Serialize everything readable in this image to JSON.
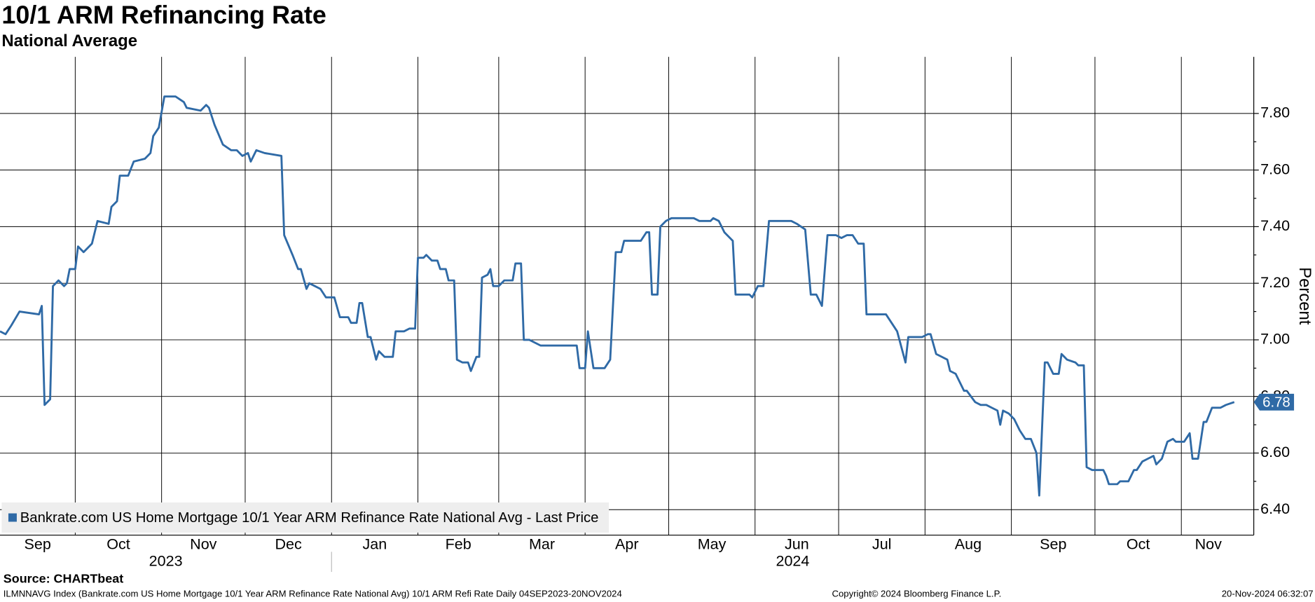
{
  "chart_data": {
    "type": "line",
    "title": "10/1 ARM Refinancing Rate",
    "subtitle": "National Average",
    "y_axis_label": "Percent",
    "source": "Source: CHARTbeat",
    "footer_left": "ILMNNAVG Index (Bankrate.com US Home Mortgage 10/1 Year ARM Refinance Rate National Avg) 10/1 ARM Refi Rate  Daily 04SEP2023-20NOV2024",
    "footer_center": "Copyright© 2024 Bloomberg Finance L.P.",
    "footer_right": "20-Nov-2024 06:32:07",
    "years": [
      "2023",
      "2024"
    ],
    "xlim": [
      "2023-09-04",
      "2024-11-27"
    ],
    "xticks": [
      {
        "value": "2023-09-01",
        "label": "Sep"
      },
      {
        "value": "2023-10-01",
        "label": "Oct"
      },
      {
        "value": "2023-11-01",
        "label": "Nov"
      },
      {
        "value": "2023-12-01",
        "label": "Dec"
      },
      {
        "value": "2024-01-01",
        "label": "Jan"
      },
      {
        "value": "2024-02-01",
        "label": "Feb"
      },
      {
        "value": "2024-03-01",
        "label": "Mar"
      },
      {
        "value": "2024-04-01",
        "label": "Apr"
      },
      {
        "value": "2024-05-01",
        "label": "May"
      },
      {
        "value": "2024-06-01",
        "label": "Jun"
      },
      {
        "value": "2024-07-01",
        "label": "Jul"
      },
      {
        "value": "2024-08-01",
        "label": "Aug"
      },
      {
        "value": "2024-09-01",
        "label": "Sep"
      },
      {
        "value": "2024-10-01",
        "label": "Oct"
      },
      {
        "value": "2024-11-01",
        "label": "Nov"
      }
    ],
    "ylim": [
      6.31,
      8.0
    ],
    "yticks": [
      {
        "value": 6.4,
        "label": "6.40"
      },
      {
        "value": 6.6,
        "label": "6.60"
      },
      {
        "value": 6.8,
        "label": "6.80"
      },
      {
        "value": 7.0,
        "label": "7.00"
      },
      {
        "value": 7.2,
        "label": "7.20"
      },
      {
        "value": 7.4,
        "label": "7.40"
      },
      {
        "value": 7.6,
        "label": "7.60"
      },
      {
        "value": 7.8,
        "label": "7.80"
      }
    ],
    "grid": true,
    "legend": "bottom-left",
    "x": [
      "2023-09-04",
      "2023-09-06",
      "2023-09-08",
      "2023-09-11",
      "2023-09-18",
      "2023-09-19",
      "2023-09-20",
      "2023-09-22",
      "2023-09-23",
      "2023-09-25",
      "2023-09-27",
      "2023-09-28",
      "2023-09-29",
      "2023-10-01",
      "2023-10-02",
      "2023-10-04",
      "2023-10-07",
      "2023-10-09",
      "2023-10-13",
      "2023-10-14",
      "2023-10-16",
      "2023-10-17",
      "2023-10-20",
      "2023-10-22",
      "2023-10-26",
      "2023-10-28",
      "2023-10-29",
      "2023-10-31",
      "2023-11-02",
      "2023-11-06",
      "2023-11-09",
      "2023-11-10",
      "2023-11-15",
      "2023-11-17",
      "2023-11-18",
      "2023-11-20",
      "2023-11-23",
      "2023-11-26",
      "2023-11-28",
      "2023-11-30",
      "2023-12-02",
      "2023-12-03",
      "2023-12-05",
      "2023-12-08",
      "2023-12-14",
      "2023-12-15",
      "2023-12-18",
      "2023-12-20",
      "2023-12-21",
      "2023-12-23",
      "2023-12-24",
      "2023-12-28",
      "2023-12-30",
      "2024-01-02",
      "2024-01-04",
      "2024-01-07",
      "2024-01-08",
      "2024-01-10",
      "2024-01-11",
      "2024-01-12",
      "2024-01-14",
      "2024-01-15",
      "2024-01-17",
      "2024-01-18",
      "2024-01-20",
      "2024-01-23",
      "2024-01-24",
      "2024-01-27",
      "2024-01-29",
      "2024-01-31",
      "2024-02-01",
      "2024-02-03",
      "2024-02-04",
      "2024-02-06",
      "2024-02-08",
      "2024-02-09",
      "2024-02-11",
      "2024-02-12",
      "2024-02-14",
      "2024-02-15",
      "2024-02-17",
      "2024-02-19",
      "2024-02-20",
      "2024-02-22",
      "2024-02-23",
      "2024-02-24",
      "2024-02-26",
      "2024-02-27",
      "2024-02-28",
      "2024-03-01",
      "2024-03-03",
      "2024-03-06",
      "2024-03-07",
      "2024-03-09",
      "2024-03-10",
      "2024-03-12",
      "2024-03-14",
      "2024-03-16",
      "2024-03-29",
      "2024-03-30",
      "2024-04-01",
      "2024-04-02",
      "2024-04-04",
      "2024-04-08",
      "2024-04-10",
      "2024-04-12",
      "2024-04-14",
      "2024-04-15",
      "2024-04-21",
      "2024-04-23",
      "2024-04-24",
      "2024-04-25",
      "2024-04-27",
      "2024-04-28",
      "2024-04-30",
      "2024-05-02",
      "2024-05-10",
      "2024-05-12",
      "2024-05-16",
      "2024-05-17",
      "2024-05-19",
      "2024-05-21",
      "2024-05-24",
      "2024-05-25",
      "2024-05-30",
      "2024-05-31",
      "2024-06-02",
      "2024-06-04",
      "2024-06-06",
      "2024-06-14",
      "2024-06-16",
      "2024-06-19",
      "2024-06-21",
      "2024-06-23",
      "2024-06-25",
      "2024-06-27",
      "2024-06-30",
      "2024-07-02",
      "2024-07-04",
      "2024-07-06",
      "2024-07-08",
      "2024-07-10",
      "2024-07-11",
      "2024-07-18",
      "2024-07-20",
      "2024-07-22",
      "2024-07-25",
      "2024-07-26",
      "2024-07-31",
      "2024-08-02",
      "2024-08-03",
      "2024-08-05",
      "2024-08-07",
      "2024-08-09",
      "2024-08-10",
      "2024-08-12",
      "2024-08-15",
      "2024-08-16",
      "2024-08-19",
      "2024-08-21",
      "2024-08-23",
      "2024-08-25",
      "2024-08-27",
      "2024-08-28",
      "2024-08-29",
      "2024-08-31",
      "2024-09-02",
      "2024-09-04",
      "2024-09-06",
      "2024-09-08",
      "2024-09-10",
      "2024-09-11",
      "2024-09-13",
      "2024-09-14",
      "2024-09-16",
      "2024-09-18",
      "2024-09-19",
      "2024-09-21",
      "2024-09-24",
      "2024-09-25",
      "2024-09-27",
      "2024-09-28",
      "2024-09-30",
      "2024-10-04",
      "2024-10-05",
      "2024-10-06",
      "2024-10-09",
      "2024-10-10",
      "2024-10-13",
      "2024-10-15",
      "2024-10-16",
      "2024-10-18",
      "2024-10-20",
      "2024-10-22",
      "2024-10-23",
      "2024-10-25",
      "2024-10-27",
      "2024-10-29",
      "2024-10-30",
      "2024-11-02",
      "2024-11-04",
      "2024-11-05",
      "2024-11-07",
      "2024-11-09",
      "2024-11-10",
      "2024-11-12",
      "2024-11-15",
      "2024-11-17",
      "2024-11-20"
    ],
    "series": [
      {
        "name": "Bankrate.com US Home Mortgage 10/1 Year ARM Refinance Rate National Avg - Last Price",
        "color": "#2f6aa6",
        "values": [
          7.03,
          7.02,
          7.05,
          7.1,
          7.09,
          7.12,
          6.77,
          6.79,
          7.19,
          7.21,
          7.19,
          7.2,
          7.25,
          7.25,
          7.33,
          7.31,
          7.34,
          7.42,
          7.41,
          7.47,
          7.49,
          7.58,
          7.58,
          7.63,
          7.64,
          7.66,
          7.72,
          7.75,
          7.86,
          7.86,
          7.84,
          7.82,
          7.81,
          7.83,
          7.82,
          7.76,
          7.69,
          7.67,
          7.67,
          7.65,
          7.66,
          7.63,
          7.67,
          7.66,
          7.65,
          7.37,
          7.3,
          7.25,
          7.25,
          7.18,
          7.2,
          7.18,
          7.15,
          7.15,
          7.08,
          7.08,
          7.06,
          7.06,
          7.13,
          7.13,
          7.01,
          7.01,
          6.93,
          6.96,
          6.94,
          6.94,
          7.03,
          7.03,
          7.04,
          7.04,
          7.29,
          7.29,
          7.3,
          7.28,
          7.28,
          7.25,
          7.25,
          7.21,
          7.21,
          6.93,
          6.92,
          6.92,
          6.89,
          6.94,
          6.94,
          7.22,
          7.23,
          7.25,
          7.19,
          7.19,
          7.21,
          7.21,
          7.27,
          7.27,
          7.0,
          7.0,
          6.99,
          6.98,
          6.98,
          6.9,
          6.9,
          7.03,
          6.9,
          6.9,
          6.93,
          7.31,
          7.31,
          7.35,
          7.35,
          7.38,
          7.38,
          7.16,
          7.16,
          7.4,
          7.42,
          7.43,
          7.43,
          7.42,
          7.42,
          7.43,
          7.42,
          7.38,
          7.35,
          7.16,
          7.16,
          7.15,
          7.19,
          7.19,
          7.42,
          7.42,
          7.41,
          7.39,
          7.16,
          7.16,
          7.12,
          7.37,
          7.37,
          7.36,
          7.37,
          7.37,
          7.34,
          7.34,
          7.09,
          7.09,
          7.06,
          7.03,
          6.92,
          7.01,
          7.01,
          7.02,
          7.02,
          6.95,
          6.94,
          6.93,
          6.89,
          6.88,
          6.82,
          6.82,
          6.78,
          6.77,
          6.77,
          6.76,
          6.75,
          6.7,
          6.75,
          6.74,
          6.72,
          6.68,
          6.65,
          6.65,
          6.6,
          6.45,
          6.92,
          6.92,
          6.88,
          6.88,
          6.95,
          6.93,
          6.92,
          6.91,
          6.91,
          6.55,
          6.54,
          6.54,
          6.52,
          6.49,
          6.49,
          6.5,
          6.5,
          6.54,
          6.54,
          6.57,
          6.58,
          6.59,
          6.56,
          6.58,
          6.64,
          6.65,
          6.64,
          6.64,
          6.67,
          6.58,
          6.58,
          6.71,
          6.71,
          6.76,
          6.76,
          6.77,
          6.78
        ]
      }
    ]
  }
}
